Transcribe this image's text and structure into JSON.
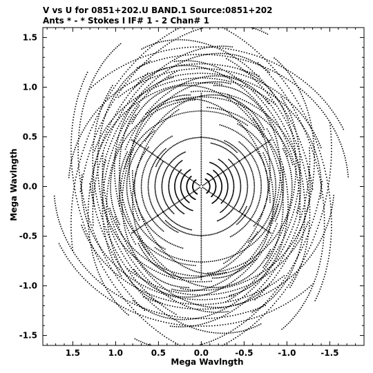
{
  "chart_data": {
    "type": "scatter",
    "title_line1": "V vs U for 0851+202.U BAND.1   Source:0851+202",
    "title_line2": "Ants * - *     Stokes I  IF# 1 - 2  Chan# 1",
    "xlabel": "Mega Wavlngth",
    "ylabel": "Mega Wavlngth",
    "xlim": [
      1.85,
      -1.9
    ],
    "ylim": [
      -1.6,
      1.6
    ],
    "x_ticks": [
      1.5,
      1.0,
      0.5,
      0.0,
      -0.5,
      -1.0,
      -1.5
    ],
    "x_tick_labels": [
      "1.5",
      "1.0",
      "0.5",
      "0.0",
      "-0.5",
      "-1.0",
      "-1.5"
    ],
    "y_ticks": [
      1.5,
      1.0,
      0.5,
      0.0,
      -0.5,
      -1.0,
      -1.5
    ],
    "y_tick_labels": [
      "1.5",
      "1.0",
      "0.5",
      "0.0",
      "-0.5",
      "-1.0",
      "-1.5"
    ],
    "point_color": "#000000",
    "frame_color": "#000000",
    "uv_model": {
      "symmetric": true,
      "baselines": [
        {
          "a": 0.1,
          "b": 0.09,
          "phi": 95
        },
        {
          "a": 0.17,
          "b": 0.15,
          "phi": 100
        },
        {
          "a": 0.24,
          "b": 0.21,
          "phi": 88
        },
        {
          "a": 0.31,
          "b": 0.27,
          "phi": 105
        },
        {
          "a": 0.38,
          "b": 0.34,
          "phi": 92
        },
        {
          "a": 0.46,
          "b": 0.4,
          "phi": 80
        },
        {
          "a": 0.54,
          "b": 0.47,
          "phi": 112
        },
        {
          "a": 0.62,
          "b": 0.54,
          "phi": 98
        },
        {
          "a": 0.7,
          "b": 0.61,
          "phi": 85
        },
        {
          "a": 0.78,
          "b": 0.68,
          "phi": 108
        },
        {
          "a": 0.87,
          "b": 0.76,
          "phi": 95
        },
        {
          "a": 0.96,
          "b": 0.84,
          "phi": 120
        },
        {
          "a": 1.06,
          "b": 0.92,
          "phi": 60
        },
        {
          "a": 1.16,
          "b": 1.01,
          "phi": 130
        },
        {
          "a": 1.27,
          "b": 1.1,
          "phi": 45
        },
        {
          "a": 1.4,
          "b": 1.2,
          "phi": 140
        },
        {
          "a": 1.55,
          "b": 1.3,
          "phi": 30
        },
        {
          "a": 1.72,
          "b": 1.4,
          "phi": 150
        },
        {
          "a": 1.82,
          "b": 1.48,
          "phi": 170
        },
        {
          "a": 0.58,
          "b": 0.52,
          "phi": 10
        },
        {
          "a": 0.92,
          "b": 0.8,
          "phi": 20
        },
        {
          "a": 1.1,
          "b": 0.95,
          "phi": 160
        },
        {
          "a": 1.32,
          "b": 1.15,
          "phi": 15
        },
        {
          "a": 1.48,
          "b": 1.25,
          "phi": 165
        }
      ],
      "spokes_deg": [
        90,
        30,
        150
      ],
      "spoke_extent": 0.95
    }
  }
}
